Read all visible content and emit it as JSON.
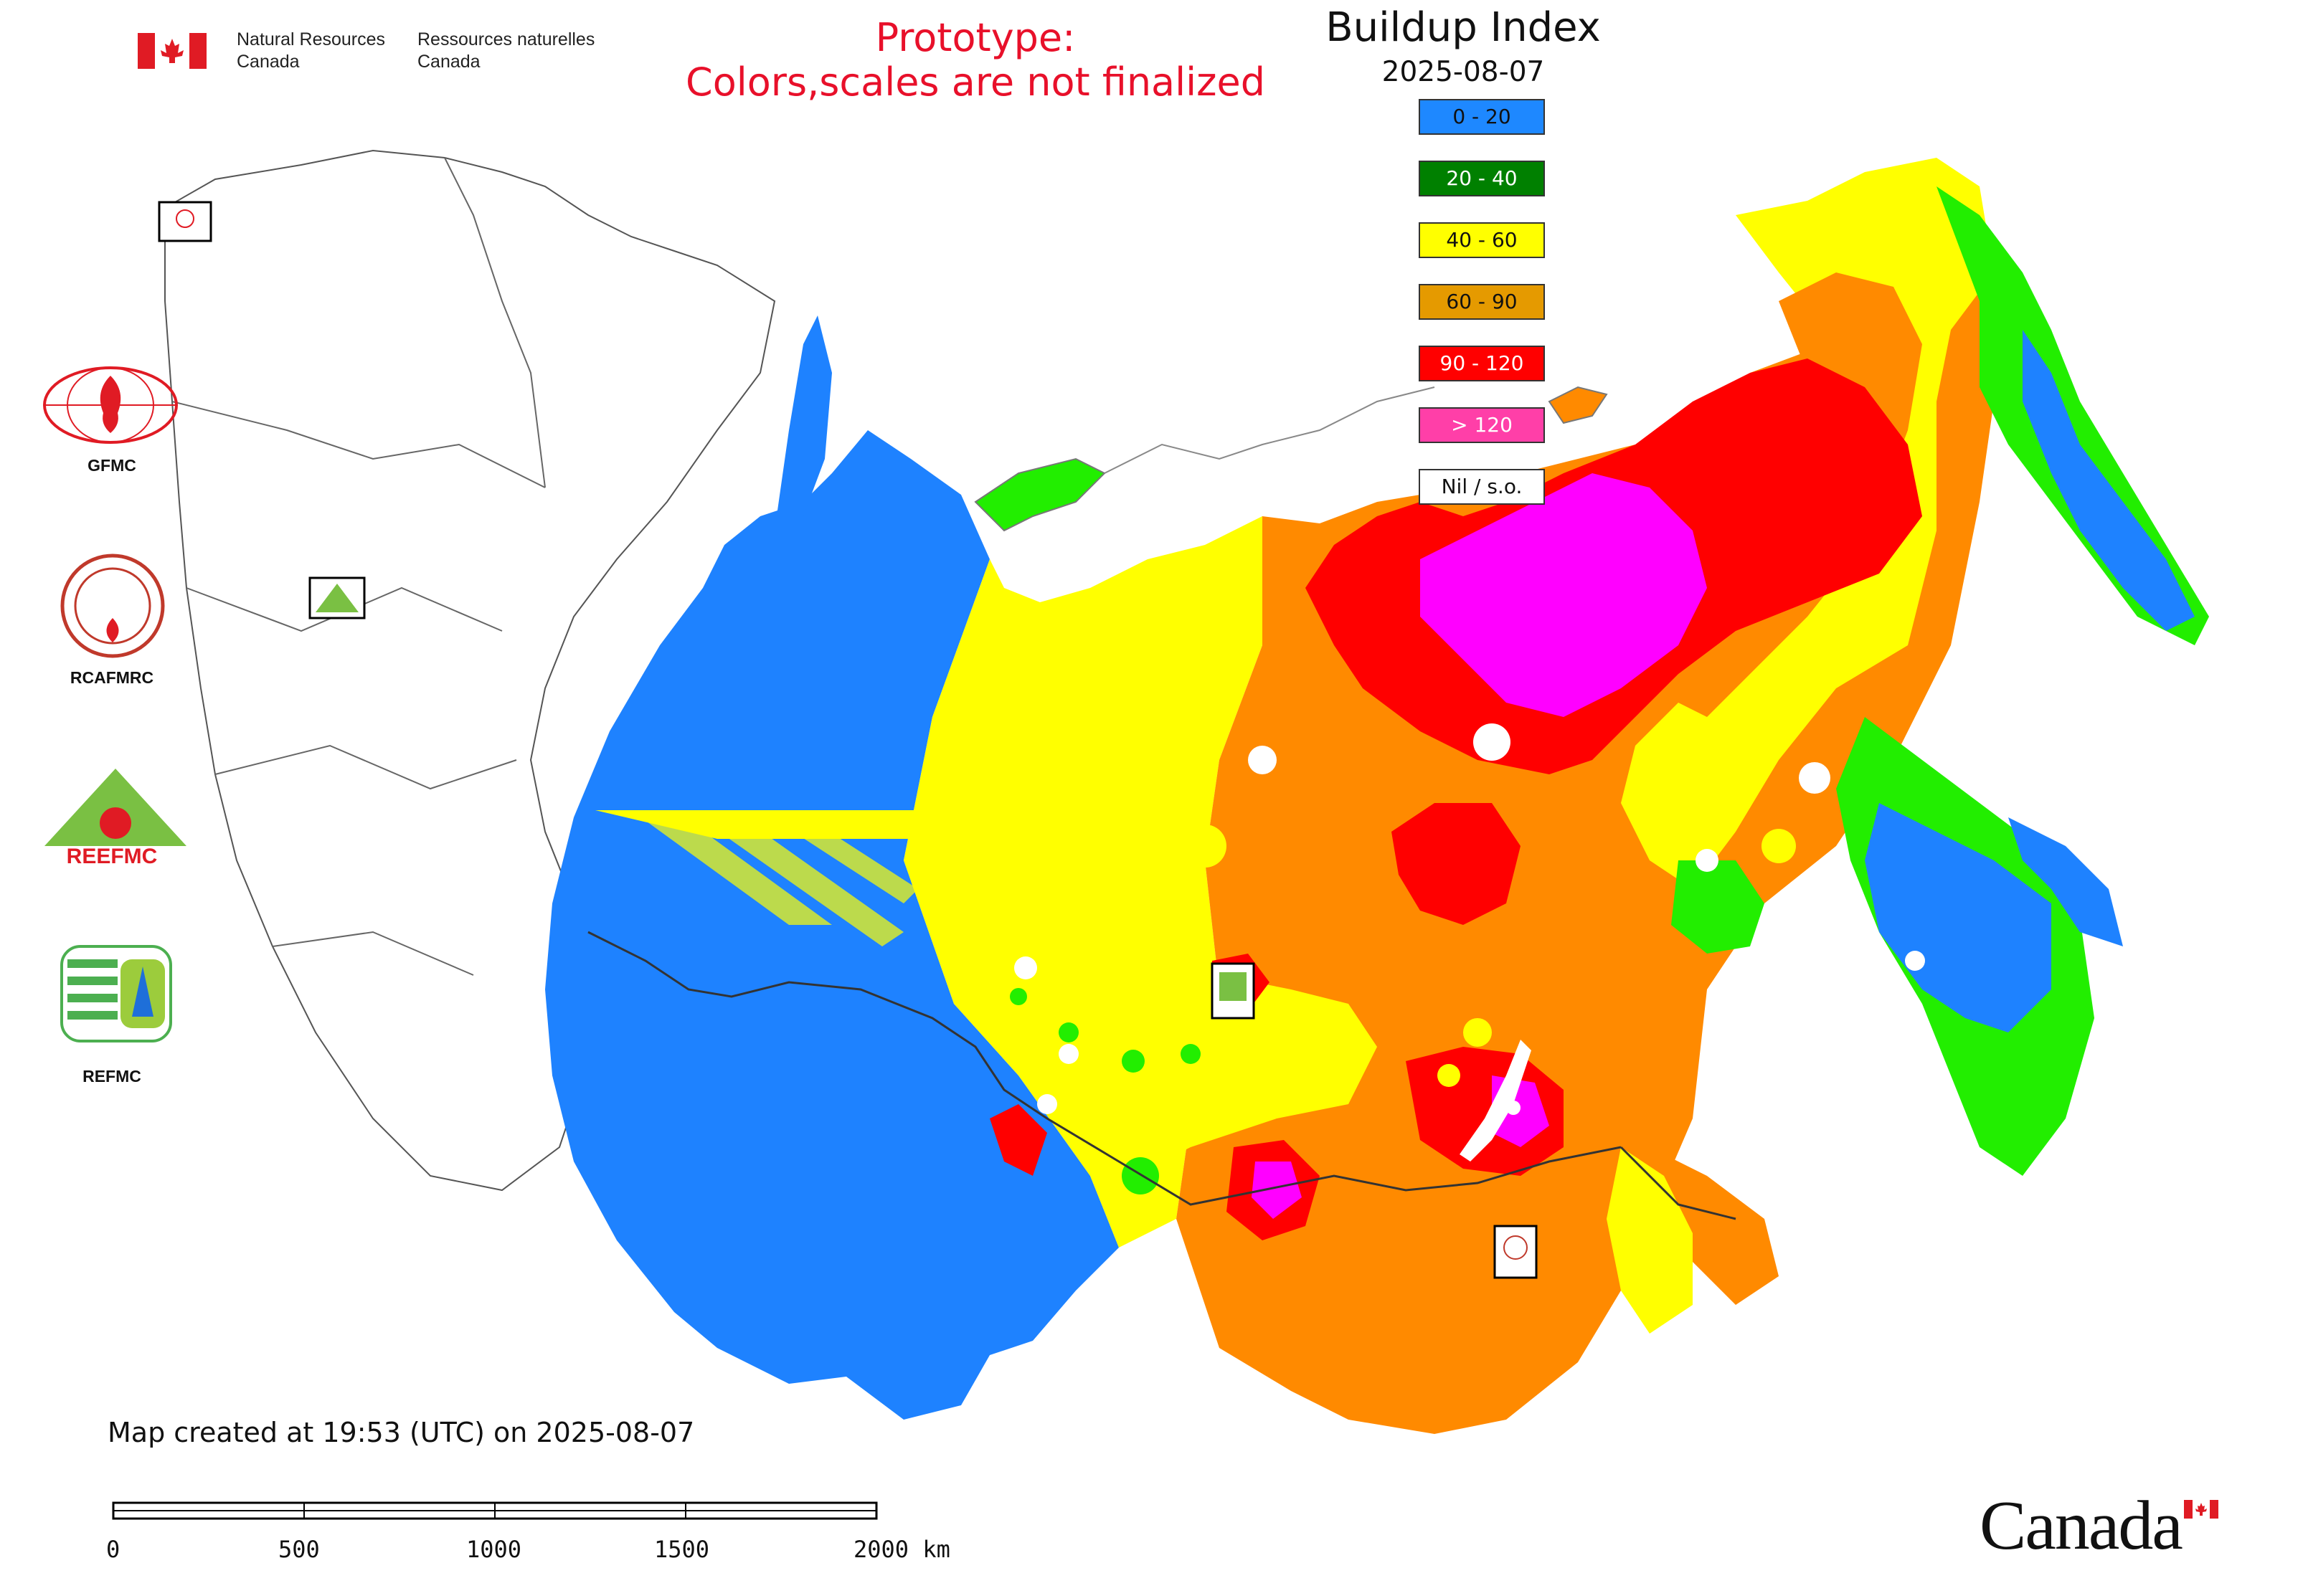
{
  "header": {
    "gov_en": [
      "Natural Resources",
      "Canada"
    ],
    "gov_fr": [
      "Ressources naturelles",
      "Canada"
    ],
    "prototype_notice": [
      "Prototype:",
      "Colors,scales are not finalized"
    ]
  },
  "legend": {
    "title": "Buildup Index",
    "date": "2025-08-07",
    "items": [
      {
        "label": "0 - 20",
        "color": "#1e88ff"
      },
      {
        "label": "20 - 40",
        "color": "#008000"
      },
      {
        "label": "40 - 60",
        "color": "#ffff00"
      },
      {
        "label": "60 - 90",
        "color": "#e59a00"
      },
      {
        "label": "90 - 120",
        "color": "#ff0000"
      },
      {
        "label": "> 120",
        "color": "#ff3fa8"
      },
      {
        "label": "Nil / s.o.",
        "color": "#ffffff"
      }
    ]
  },
  "map_colors": {
    "class_0_20": "#1e82ff",
    "class_20_40": "#22ee00",
    "class_40_60": "#ffff00",
    "class_60_90": "#ff8a00",
    "class_90_120": "#ff0000",
    "class_gt_120": "#ff00ff",
    "nil": "#ffffff",
    "prototype_red": "#e8102a"
  },
  "logos": [
    {
      "name": "GFMC",
      "label": "GFMC"
    },
    {
      "name": "RCAFMRC",
      "label": "RCAFMRC"
    },
    {
      "name": "REEFMC",
      "label": "REEFMC"
    },
    {
      "name": "REFMC",
      "label": "REFMC"
    }
  ],
  "footer": {
    "created": "Map created at 19:53 (UTC) on 2025-08-07",
    "scale_labels": [
      "0",
      "500",
      "1000",
      "1500",
      "2000 km"
    ],
    "wordmark": "Canada"
  }
}
